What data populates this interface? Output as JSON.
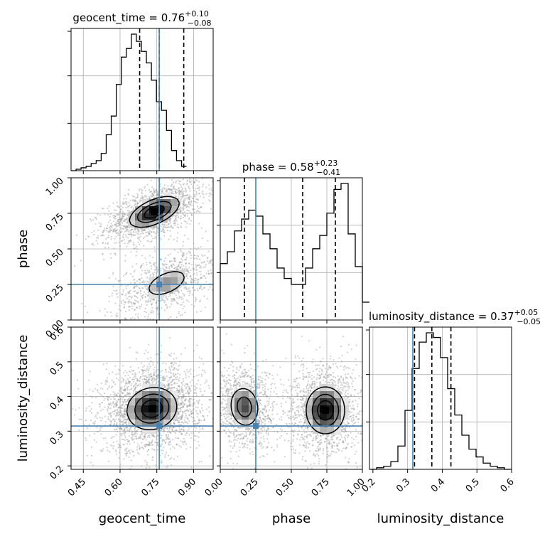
{
  "chart_data": {
    "type": "corner",
    "parameters": [
      "geocent_time",
      "phase",
      "luminosity_distance"
    ],
    "truths": {
      "geocent_time": 0.76,
      "phase": 0.25,
      "luminosity_distance": 0.315
    },
    "axes": {
      "geocent_time": {
        "lim": [
          0.4,
          0.98
        ],
        "ticks": [
          0.45,
          0.6,
          0.75,
          0.9
        ],
        "tick_labels": [
          "0.45",
          "0.60",
          "0.75",
          "0.90"
        ]
      },
      "phase": {
        "lim": [
          0.0,
          1.0
        ],
        "ticks": [
          0.0,
          0.25,
          0.5,
          0.75,
          1.0
        ],
        "tick_labels": [
          "0.00",
          "0.25",
          "0.50",
          "0.75",
          "1.00"
        ]
      },
      "luminosity_distance": {
        "lim": [
          0.19,
          0.6
        ],
        "ticks": [
          0.2,
          0.3,
          0.4,
          0.5,
          0.6
        ],
        "tick_labels": [
          "0.2",
          "0.3",
          "0.4",
          "0.5",
          "0.6"
        ]
      }
    },
    "marginals": [
      {
        "param": "geocent_time",
        "title_name": "geocent_time",
        "title_value": "0.76",
        "title_plus": "+0.10",
        "title_minus": "−0.08",
        "quantiles": [
          0.68,
          0.76,
          0.86
        ],
        "bin_start": 0.4,
        "bin_width": 0.0205,
        "counts": [
          0,
          1,
          2,
          3,
          5,
          7,
          12,
          25,
          38,
          60,
          79,
          85,
          95,
          90,
          83,
          75,
          63,
          48,
          42,
          28,
          14,
          7,
          3
        ]
      },
      {
        "param": "phase",
        "title_name": "phase",
        "title_value": "0.58",
        "title_plus": "+0.23",
        "title_minus": "−0.41",
        "quantiles": [
          0.17,
          0.58,
          0.81
        ],
        "bin_start": 0.0,
        "bin_width": 0.05,
        "counts": [
          38,
          46,
          60,
          68,
          74,
          70,
          58,
          48,
          35,
          28,
          24,
          24,
          35,
          48,
          57,
          72,
          88,
          92,
          58,
          36,
          12
        ]
      },
      {
        "param": "luminosity_distance",
        "title_name": "luminosity_distance",
        "title_value": "0.37",
        "title_plus": "+0.05",
        "title_minus": "−0.05",
        "quantiles": [
          0.32,
          0.37,
          0.425
        ],
        "bin_start": 0.19,
        "bin_width": 0.0205,
        "counts": [
          0,
          1,
          2,
          5,
          15,
          38,
          65,
          82,
          88,
          85,
          72,
          52,
          35,
          22,
          13,
          8,
          4,
          2,
          1,
          0
        ]
      }
    ],
    "joint": [
      {
        "x": "geocent_time",
        "y": "phase",
        "modes": [
          {
            "cx": 0.74,
            "cy": 0.76,
            "sx": 0.075,
            "sy": 0.08,
            "rho": 0.55,
            "peak": 1.0
          },
          {
            "cx": 0.79,
            "cy": 0.26,
            "sx": 0.08,
            "sy": 0.09,
            "rho": 0.5,
            "peak": 0.6
          }
        ],
        "contour_levels": [
          0.4,
          0.65,
          0.85
        ]
      },
      {
        "x": "geocent_time",
        "y": "luminosity_distance",
        "modes": [
          {
            "cx": 0.73,
            "cy": 0.365,
            "sx": 0.075,
            "sy": 0.045,
            "rho": 0.1,
            "peak": 1.0
          }
        ],
        "contour_levels": [
          0.4,
          0.65,
          0.85
        ]
      },
      {
        "x": "phase",
        "y": "luminosity_distance",
        "modes": [
          {
            "cx": 0.17,
            "cy": 0.37,
            "sx": 0.08,
            "sy": 0.045,
            "rho": -0.1,
            "peak": 0.8
          },
          {
            "cx": 0.74,
            "cy": 0.36,
            "sx": 0.1,
            "sy": 0.05,
            "rho": 0.0,
            "peak": 1.0
          }
        ],
        "contour_levels": [
          0.4,
          0.65,
          0.85
        ]
      }
    ]
  }
}
